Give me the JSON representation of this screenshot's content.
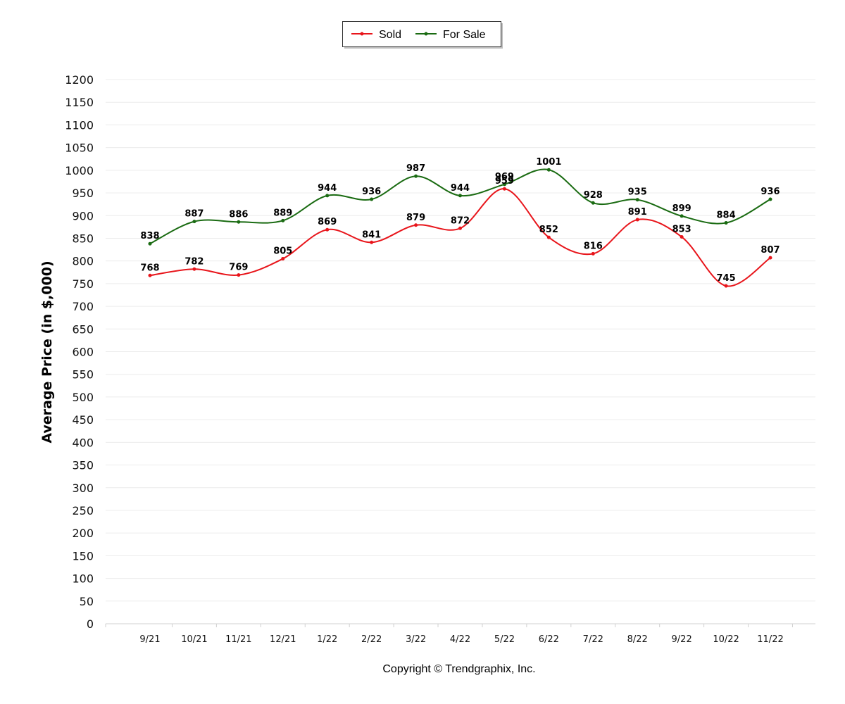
{
  "chart_data": {
    "type": "line",
    "categories": [
      "9/21",
      "10/21",
      "11/21",
      "12/21",
      "1/22",
      "2/22",
      "3/22",
      "4/22",
      "5/22",
      "6/22",
      "7/22",
      "8/22",
      "9/22",
      "10/22",
      "11/22"
    ],
    "series": [
      {
        "name": "Sold",
        "color": "#e8151b",
        "values": [
          768,
          782,
          769,
          805,
          869,
          841,
          879,
          872,
          959,
          852,
          816,
          891,
          853,
          745,
          807
        ]
      },
      {
        "name": "For Sale",
        "color": "#1a6b12",
        "values": [
          838,
          887,
          886,
          889,
          944,
          936,
          987,
          944,
          969,
          1001,
          928,
          935,
          899,
          884,
          936
        ]
      }
    ],
    "ylabel": "Average Price (in $,000)",
    "ylim": [
      0,
      1200
    ],
    "ytick_step": 50,
    "grid": true,
    "legend_position": "top-center",
    "smooth": true
  },
  "footer": {
    "copyright": "Copyright © Trendgraphix, Inc."
  }
}
